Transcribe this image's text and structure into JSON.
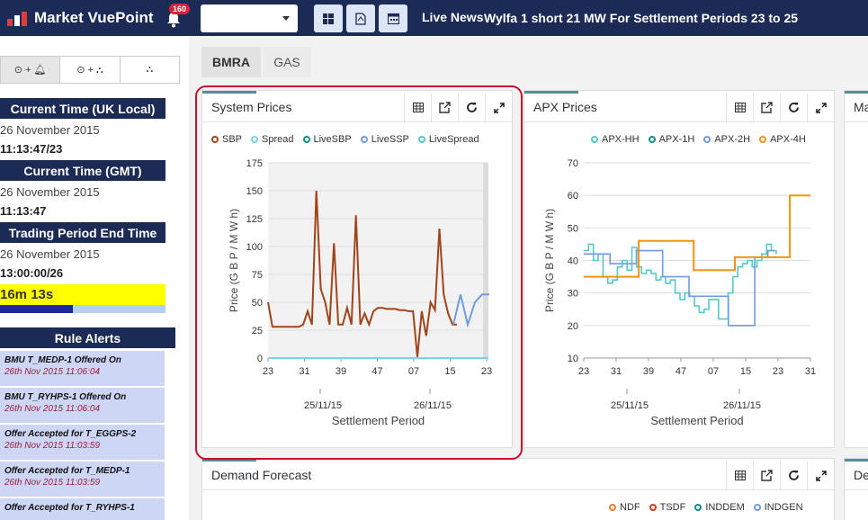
{
  "header": {
    "app_name": "Market VuePoint",
    "notification_count": "160",
    "select_value": "",
    "live_news_label": "Live News",
    "live_news_text": "Wylfa 1 short 21 MW For Settlement Periods 23 to 25",
    "toolbar_icons": [
      "windows-icon",
      "pdf-icon",
      "calendar-icon"
    ]
  },
  "sidebar": {
    "tabs": [
      {
        "label": "⊙+🔔",
        "icon": "clock-bell-icon"
      },
      {
        "label": "⊙+",
        "icon": "clock-hierarchy-icon"
      },
      {
        "label": "",
        "icon": "hierarchy-icon"
      }
    ],
    "current_time_uk_label": "Current Time (UK Local)",
    "current_time_uk_date": "26 November 2015",
    "current_time_uk_time": "11:13:47/23",
    "current_time_gmt_label": "Current Time (GMT)",
    "current_time_gmt_date": "26 November 2015",
    "current_time_gmt_time": "11:13:47",
    "trading_period_label": "Trading Period End Time",
    "trading_period_date": "26 November 2015",
    "trading_period_time": "13:00:00/26",
    "countdown": "16m 13s",
    "countdown_progress_fraction": 0.44,
    "rule_alerts_label": "Rule Alerts",
    "alerts": [
      {
        "title": "BMU T_MEDP-1 Offered On",
        "date": "26th Nov 2015 11:06:04"
      },
      {
        "title": "BMU T_RYHPS-1 Offered On",
        "date": "26th Nov 2015 11:06:04"
      },
      {
        "title": "Offer Accepted for T_EGGPS-2",
        "date": "26th Nov 2015 11:03:59"
      },
      {
        "title": "Offer Accepted for T_MEDP-1",
        "date": "26th Nov 2015 11:03:59"
      },
      {
        "title": "Offer Accepted for T_RYHPS-1",
        "date": ""
      }
    ]
  },
  "content_tabs": [
    "BMRA",
    "GAS"
  ],
  "panels": {
    "system_prices": {
      "title": "System Prices"
    },
    "apx_prices": {
      "title": "APX Prices"
    },
    "third": {
      "title": "Ma"
    },
    "demand_forecast": {
      "title": "Demand Forecast",
      "legend": [
        {
          "name": "NDF",
          "color": "#f57c2b"
        },
        {
          "name": "TSDF",
          "color": "#e0331f"
        },
        {
          "name": "INDDEM",
          "color": "#0f8f8a"
        },
        {
          "name": "INDGEN",
          "color": "#6f9be0"
        }
      ]
    },
    "fourth": {
      "title": "De"
    }
  },
  "chart_data": [
    {
      "type": "line",
      "title": "System Prices",
      "xlabel": "Settlement Period",
      "ylabel": "Price (G B P / M W h)",
      "ylim": [
        0,
        175
      ],
      "yticks": [
        "0",
        "25",
        "50",
        "75",
        "100",
        "125",
        "150",
        "175"
      ],
      "xticks": [
        "23",
        "31",
        "39",
        "47",
        "07",
        "15",
        "23"
      ],
      "date_labels": [
        "25/11/15",
        "26/11/15"
      ],
      "legend": [
        "SBP",
        "Spread",
        "LiveSBP",
        "LiveSSP",
        "LiveSpread"
      ],
      "legend_colors": [
        "#a0441a",
        "#7fd0ec",
        "#0f8f8a",
        "#6f9be0",
        "#55c8c8"
      ],
      "series": [
        {
          "name": "SBP",
          "values": [
            50,
            28,
            28,
            28,
            28,
            28,
            28,
            28,
            30,
            42,
            30,
            150,
            62,
            50,
            30,
            103,
            30,
            30,
            45,
            30,
            128,
            30,
            40,
            30,
            42,
            45,
            45,
            44,
            44,
            44,
            43,
            43,
            42,
            42,
            1,
            42,
            20,
            50,
            43,
            116,
            57,
            40,
            30,
            30
          ]
        },
        {
          "name": "Spread",
          "values": [
            0,
            0,
            0,
            0,
            0,
            0,
            0,
            0,
            0,
            0,
            0,
            0,
            0,
            0,
            0,
            0,
            0,
            0,
            0,
            0,
            0,
            0,
            0,
            0,
            0,
            0,
            0,
            0,
            0,
            0,
            0,
            0,
            0,
            0,
            0,
            0,
            0,
            0,
            0,
            0,
            0,
            0,
            0,
            0,
            0,
            0,
            0
          ]
        },
        {
          "name": "LiveSBP",
          "values": [
            30,
            57,
            30,
            50,
            57,
            57
          ]
        }
      ]
    },
    {
      "type": "line",
      "title": "APX Prices",
      "xlabel": "Settlement Period",
      "ylabel": "Price (G B P / M W h)",
      "ylim": [
        10,
        70
      ],
      "yticks": [
        "10",
        "20",
        "30",
        "40",
        "50",
        "60",
        "70"
      ],
      "xticks": [
        "23",
        "31",
        "39",
        "47",
        "07",
        "15",
        "23",
        "31"
      ],
      "date_labels": [
        "25/11/15",
        "26/11/15"
      ],
      "legend": [
        "APX-HH",
        "APX-1H",
        "APX-2H",
        "APX-4H"
      ],
      "legend_colors": [
        "#55c8c8",
        "#0f8f8a",
        "#6f9be0",
        "#f39214"
      ],
      "series": [
        {
          "name": "APX-HH",
          "values": [
            43,
            45,
            40,
            42,
            35,
            33,
            34,
            38,
            40,
            37,
            44,
            38,
            36,
            37,
            36,
            34,
            35,
            33,
            34,
            30,
            28,
            30,
            29,
            26,
            24,
            25,
            28,
            28,
            22,
            22,
            30,
            35,
            38,
            39,
            40,
            38,
            40,
            42,
            45,
            43,
            42
          ]
        },
        {
          "name": "APX-1H",
          "values": [
            42,
            42,
            39,
            39,
            38,
            38,
            37,
            37,
            36,
            36,
            35,
            35,
            33,
            33,
            31,
            31,
            29,
            29,
            28,
            28
          ]
        },
        {
          "name": "APX-2H",
          "values": [
            42,
            42,
            42,
            42,
            39,
            39,
            39,
            39,
            43,
            43,
            43,
            43,
            35,
            35,
            35,
            35,
            29,
            29,
            29,
            29,
            29,
            29,
            20,
            20,
            20,
            20,
            41,
            41,
            43,
            43
          ]
        },
        {
          "name": "APX-4H",
          "values": [
            35,
            35,
            35,
            35,
            35,
            35,
            35,
            35,
            46,
            46,
            46,
            46,
            46,
            46,
            46,
            46,
            37,
            37,
            37,
            37,
            37,
            37,
            41,
            41,
            41,
            41,
            41,
            41,
            41,
            41,
            60,
            60,
            60,
            60
          ]
        }
      ]
    }
  ]
}
